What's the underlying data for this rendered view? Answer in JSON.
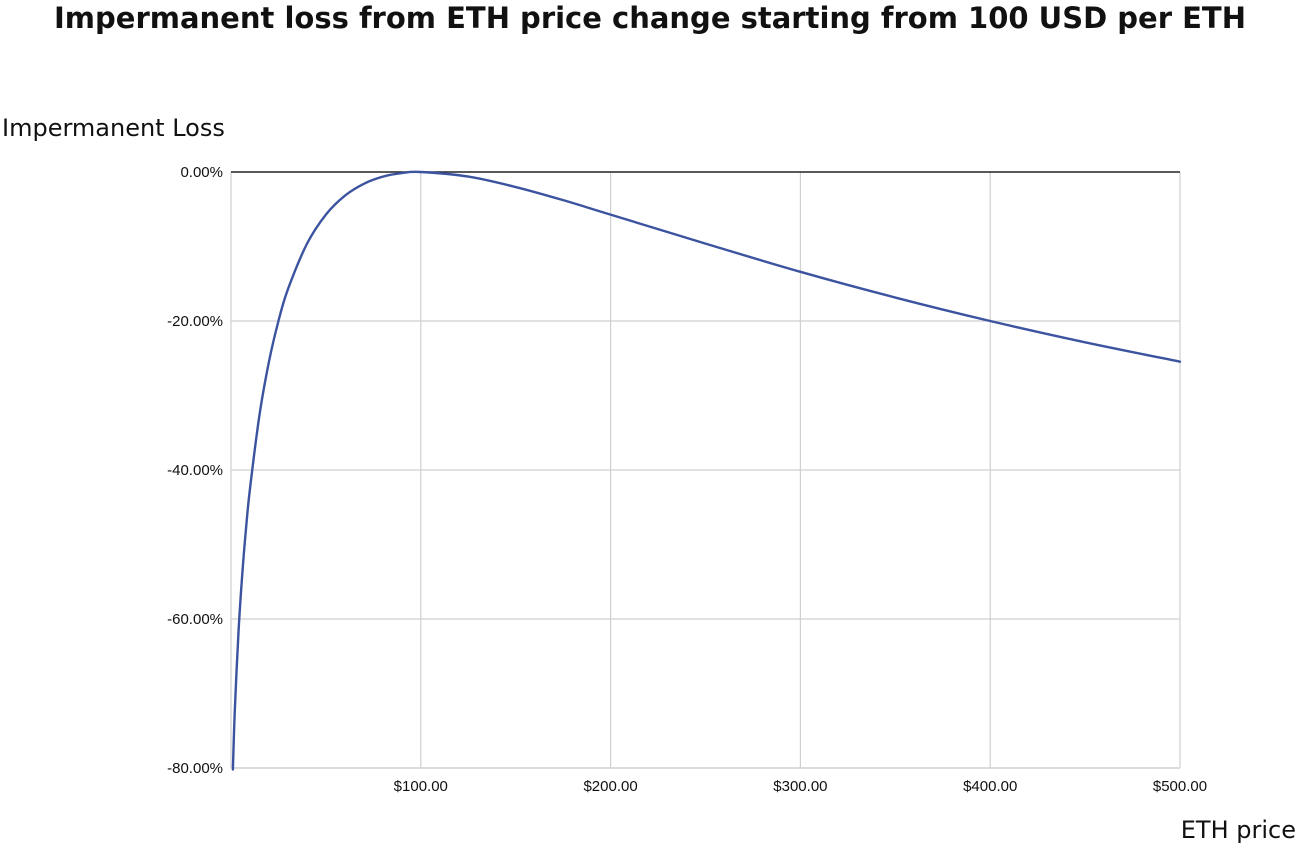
{
  "chart_data": {
    "type": "line",
    "title": "Impermanent loss from ETH price change starting from 100 USD per ETH",
    "xlabel": "ETH price",
    "ylabel": "Impermanent Loss",
    "xlim": [
      1,
      500
    ],
    "ylim": [
      -0.8,
      0
    ],
    "x_ticks": [
      100,
      200,
      300,
      400,
      500
    ],
    "x_tick_labels": [
      "$100.00",
      "$200.00",
      "$300.00",
      "$400.00",
      "$500.00"
    ],
    "y_ticks": [
      0,
      -0.2,
      -0.4,
      -0.6,
      -0.8
    ],
    "y_tick_labels": [
      "0.00%",
      "-20.00%",
      "-40.00%",
      "-60.00%",
      "-80.00%"
    ],
    "grid": true,
    "legend": "none",
    "series": [
      {
        "color": "#3c53a0",
        "x": [
          1,
          2,
          4,
          6,
          8,
          10,
          15,
          20,
          25,
          30,
          40,
          50,
          60,
          70,
          80,
          90,
          100,
          125,
          150,
          175,
          200,
          250,
          300,
          350,
          400,
          450,
          500
        ],
        "y": [
          -0.802,
          -0.7227,
          -0.6154,
          -0.5377,
          -0.4761,
          -0.4251,
          -0.3263,
          -0.2546,
          -0.2,
          -0.1573,
          -0.0965,
          -0.0572,
          -0.0318,
          -0.0158,
          -0.0062,
          -0.0014,
          0.0,
          -0.0062,
          -0.0202,
          -0.0378,
          -0.0572,
          -0.0961,
          -0.134,
          -0.1685,
          -0.2,
          -0.2286,
          -0.2546
        ]
      }
    ]
  }
}
